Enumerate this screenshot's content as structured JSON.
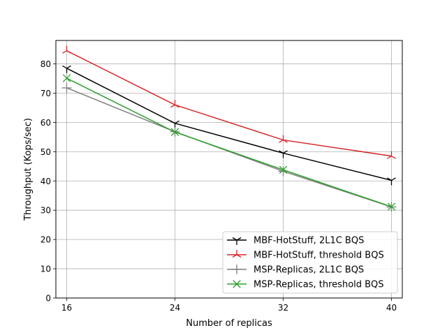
{
  "chart_data": {
    "type": "line",
    "title": "",
    "xlabel": "Number of replicas",
    "ylabel": "Throughput (Kops/sec)",
    "x": [
      16,
      24,
      32,
      40
    ],
    "x_ticks": [
      "16",
      "24",
      "32",
      "40"
    ],
    "xlim": [
      15.2,
      40.8
    ],
    "ylim": [
      0,
      88
    ],
    "y_ticks": [
      "0",
      "10",
      "20",
      "30",
      "40",
      "50",
      "60",
      "70",
      "80"
    ],
    "grid": true,
    "legend_position": "lower-right",
    "series": [
      {
        "name": "MBF-HotStuff, 2L1C BQS",
        "values": [
          78.5,
          59.7,
          49.5,
          40.2
        ],
        "color": "#000000",
        "marker": "tri-down"
      },
      {
        "name": "MBF-HotStuff, threshold BQS",
        "values": [
          84.5,
          66.0,
          54.0,
          48.5
        ],
        "color": "#d62728",
        "marker": "tri-up"
      },
      {
        "name": "MSP-Replicas, 2L1C BQS",
        "values": [
          71.8,
          56.8,
          43.3,
          31.1
        ],
        "color": "#808080",
        "marker": "plus"
      },
      {
        "name": "MSP-Replicas, threshold BQS",
        "values": [
          75.1,
          56.7,
          43.8,
          31.2
        ],
        "color": "#2ca02c",
        "marker": "x"
      }
    ]
  }
}
